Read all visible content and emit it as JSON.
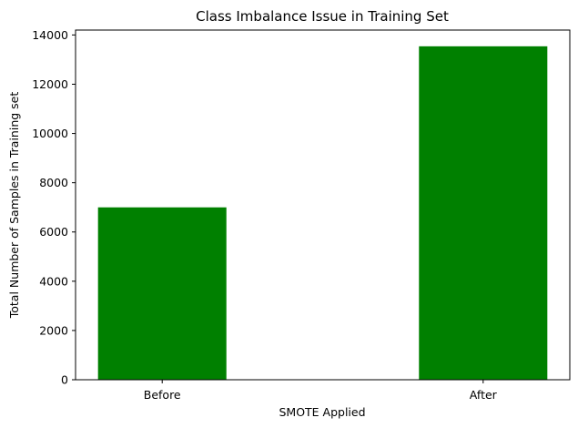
{
  "chart_data": {
    "type": "bar",
    "title": "Class Imbalance Issue in Training Set",
    "xlabel": "SMOTE Applied",
    "ylabel": "Total Number of Samples in Training set",
    "categories": [
      "Before",
      "After"
    ],
    "values": [
      7000,
      13540
    ],
    "ylim": [
      0,
      14200
    ],
    "yticks": [
      0,
      2000,
      4000,
      6000,
      8000,
      10000,
      12000,
      14000
    ],
    "bar_color": "#008000",
    "grid": false,
    "legend": false
  }
}
